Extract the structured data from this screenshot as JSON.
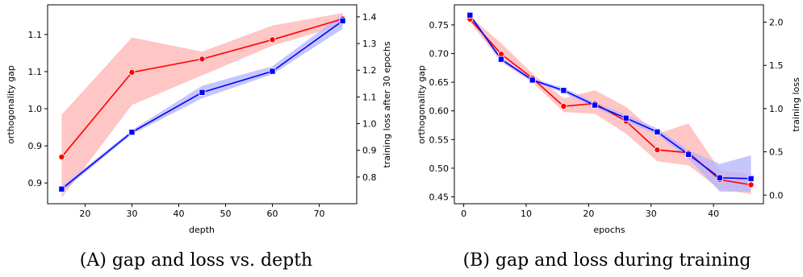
{
  "chart_data": [
    {
      "type": "line",
      "caption": "(A) gap and loss vs. depth",
      "xlabel": "depth",
      "ylabel": "orthogonality gap",
      "ylabel_right": "training loss after 30 epochs",
      "xlim": [
        12.0,
        78.0
      ],
      "ylim": [
        0.872,
        1.14
      ],
      "ylim_right": [
        0.7,
        1.445
      ],
      "xticks": [
        20,
        30,
        40,
        50,
        60,
        70
      ],
      "yticks": [
        0.9,
        0.95,
        1.0,
        1.05,
        1.1
      ],
      "yticks_right": [
        0.8,
        0.9,
        1.0,
        1.1,
        1.2,
        1.3,
        1.4
      ],
      "series": [
        {
          "axis": "left",
          "color": "#ff0000",
          "band_color": "#ffb3b3",
          "marker": "circle",
          "x": [
            15,
            30,
            45,
            60,
            75
          ],
          "y": [
            0.935,
            1.049,
            1.067,
            1.093,
            1.121
          ],
          "lower": [
            0.88,
            1.005,
            1.045,
            1.085,
            1.113
          ],
          "upper": [
            0.992,
            1.096,
            1.077,
            1.112,
            1.129
          ]
        },
        {
          "axis": "right",
          "color": "#0000ff",
          "band_color": "#b3b3ff",
          "marker": "square",
          "x": [
            15,
            30,
            45,
            60,
            75
          ],
          "y": [
            0.755,
            0.968,
            1.117,
            1.196,
            1.385
          ],
          "lower": [
            0.745,
            0.96,
            1.095,
            1.185,
            1.355
          ],
          "upper": [
            0.765,
            0.976,
            1.142,
            1.215,
            1.41
          ]
        }
      ]
    },
    {
      "type": "line",
      "caption": "(B) gap and loss during training",
      "xlabel": "epochs",
      "ylabel": "orthogonality gap",
      "ylabel_right": "training loss",
      "xlim": [
        -1.5,
        48.0
      ],
      "ylim": [
        0.438,
        0.785
      ],
      "ylim_right": [
        -0.1,
        2.2
      ],
      "xticks": [
        0,
        10,
        20,
        30,
        40
      ],
      "yticks": [
        0.45,
        0.5,
        0.55,
        0.6,
        0.65,
        0.7,
        0.75
      ],
      "yticks_right": [
        0.0,
        0.5,
        1.0,
        1.5,
        2.0
      ],
      "series": [
        {
          "axis": "left",
          "color": "#ff0000",
          "band_color": "#ffb3b3",
          "marker": "circle",
          "x": [
            1,
            6,
            11,
            16,
            21,
            26,
            31,
            36,
            41,
            46
          ],
          "y": [
            0.76,
            0.699,
            0.657,
            0.608,
            0.613,
            0.582,
            0.532,
            0.527,
            0.48,
            0.471
          ],
          "lower": [
            0.755,
            0.685,
            0.65,
            0.598,
            0.595,
            0.56,
            0.512,
            0.505,
            0.463,
            0.455
          ],
          "upper": [
            0.765,
            0.718,
            0.665,
            0.622,
            0.636,
            0.607,
            0.56,
            0.578,
            0.497,
            0.49
          ]
        },
        {
          "axis": "right",
          "color": "#0000ff",
          "band_color": "#b3b3ff",
          "marker": "square",
          "x": [
            1,
            6,
            11,
            16,
            21,
            26,
            31,
            36,
            41,
            46
          ],
          "y": [
            2.08,
            1.57,
            1.33,
            1.21,
            1.04,
            0.89,
            0.73,
            0.47,
            0.2,
            0.19
          ],
          "lower": [
            2.06,
            1.55,
            1.31,
            1.18,
            1.01,
            0.85,
            0.7,
            0.42,
            0.04,
            0.04
          ],
          "upper": [
            2.1,
            1.59,
            1.35,
            1.24,
            1.07,
            0.93,
            0.77,
            0.52,
            0.36,
            0.46
          ]
        }
      ]
    }
  ]
}
